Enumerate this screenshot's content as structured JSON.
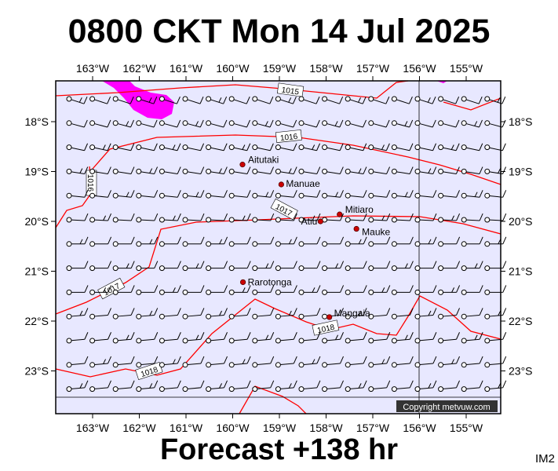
{
  "header": {
    "title": "0800 CKT Mon 14 Jul 2025"
  },
  "footer": {
    "forecast": "Forecast +138 hr",
    "image_tag": "IM2"
  },
  "map": {
    "colors": {
      "background": "#e8e8ff",
      "isobar": "#ff0000",
      "barb": "#000000",
      "precip": "#ff00ff",
      "place": "#cc0000"
    },
    "lon_labels": [
      "163°W",
      "162°W",
      "161°W",
      "160°W",
      "159°W",
      "158°W",
      "157°W",
      "156°W",
      "155°W"
    ],
    "lat_labels": [
      "18°S",
      "19°S",
      "20°S",
      "21°S",
      "22°S",
      "23°S"
    ],
    "isobar_labels": [
      "1015",
      "1016",
      "1016",
      "1017",
      "1017",
      "1018",
      "1018"
    ],
    "places": [
      {
        "name": "Aitutaki",
        "lon": -159.79,
        "lat": -18.86
      },
      {
        "name": "Manuae",
        "lon": -158.96,
        "lat": -19.26
      },
      {
        "name": "Mitiaro",
        "lon": -157.71,
        "lat": -19.86
      },
      {
        "name": "Atiu",
        "lon": -158.12,
        "lat": -20.0
      },
      {
        "name": "Mauke",
        "lon": -157.35,
        "lat": -20.15
      },
      {
        "name": "Rarotonga",
        "lon": -159.78,
        "lat": -21.22
      },
      {
        "name": "Mangaia",
        "lon": -157.93,
        "lat": -21.92
      }
    ],
    "copyright": "Copyright metvuw.com"
  }
}
